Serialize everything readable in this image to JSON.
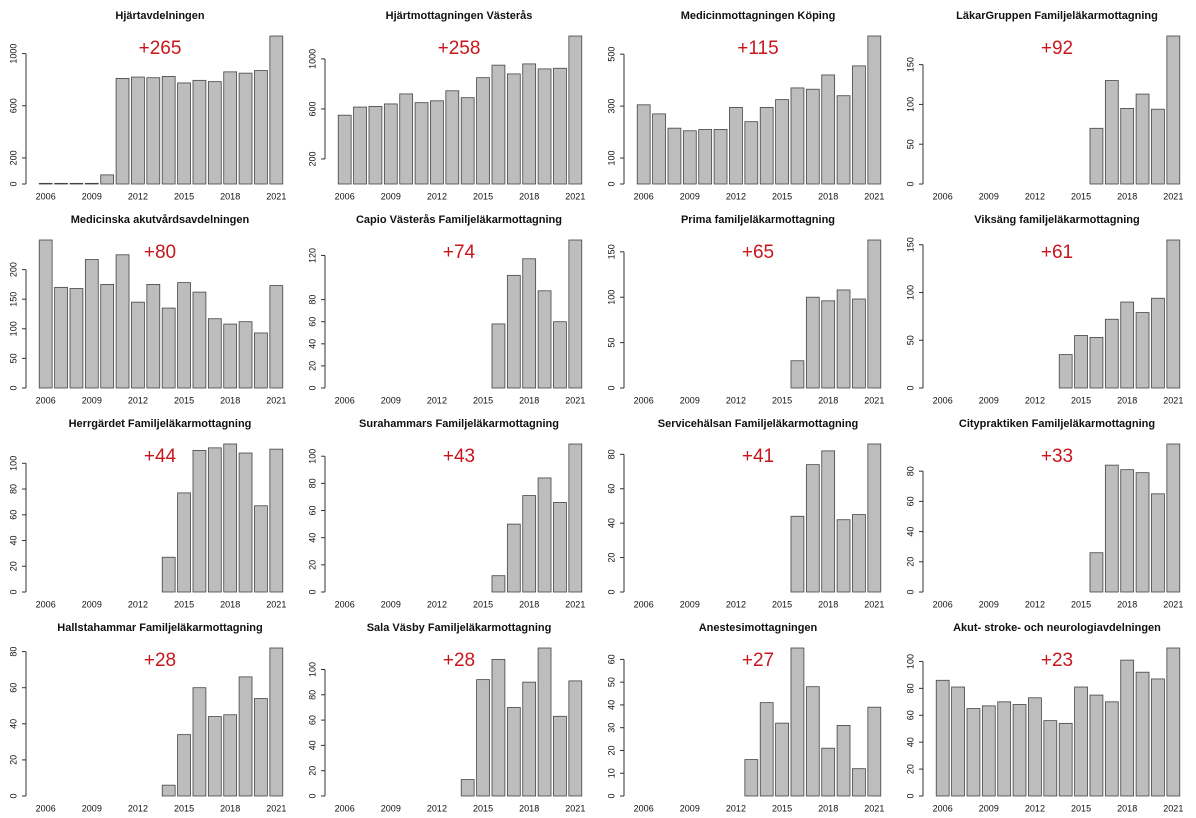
{
  "chart_data": [
    {
      "type": "bar",
      "title": "Hjärtavdelningen",
      "annotation": "+265",
      "color": "#bdbdbd",
      "annotation_color": "#c8161d",
      "categories": [
        "2006",
        null,
        null,
        "2009",
        null,
        null,
        "2012",
        null,
        null,
        "2015",
        null,
        null,
        "2018",
        null,
        null,
        "2021"
      ],
      "values": [
        5,
        5,
        5,
        5,
        70,
        810,
        820,
        815,
        825,
        775,
        795,
        785,
        860,
        850,
        870,
        1135
      ],
      "ylim": [
        0,
        1135
      ],
      "yticks": [
        0,
        200,
        600,
        1000
      ]
    },
    {
      "type": "bar",
      "title": "Hjärtmottagningen Västerås",
      "annotation": "+258",
      "color": "#bdbdbd",
      "annotation_color": "#c8161d",
      "categories": [
        "2006",
        null,
        null,
        "2009",
        null,
        null,
        "2012",
        null,
        null,
        "2015",
        null,
        null,
        "2018",
        null,
        null,
        "2021"
      ],
      "values": [
        550,
        615,
        620,
        640,
        720,
        650,
        665,
        745,
        690,
        850,
        950,
        880,
        960,
        920,
        925,
        1183
      ],
      "ylim": [
        0,
        1183
      ],
      "yticks": [
        200,
        600,
        1000
      ]
    },
    {
      "type": "bar",
      "title": "Medicinmottagningen Köping",
      "annotation": "+115",
      "color": "#bdbdbd",
      "annotation_color": "#c8161d",
      "categories": [
        "2006",
        null,
        null,
        "2009",
        null,
        null,
        "2012",
        null,
        null,
        "2015",
        null,
        null,
        "2018",
        null,
        null,
        "2021"
      ],
      "values": [
        305,
        270,
        215,
        205,
        210,
        210,
        295,
        240,
        295,
        325,
        370,
        365,
        420,
        340,
        455,
        570
      ],
      "ylim": [
        0,
        570
      ],
      "yticks": [
        0,
        100,
        300,
        500
      ]
    },
    {
      "type": "bar",
      "title": "LäkarGruppen Familjeläkarmottagning",
      "annotation": "+92",
      "color": "#bdbdbd",
      "annotation_color": "#c8161d",
      "categories": [
        "2006",
        null,
        null,
        "2009",
        null,
        null,
        "2012",
        null,
        null,
        "2015",
        null,
        null,
        "2018",
        null,
        null,
        "2021"
      ],
      "values": [
        0,
        0,
        0,
        0,
        0,
        0,
        0,
        0,
        0,
        0,
        70,
        130,
        95,
        113,
        94,
        186
      ],
      "ylim": [
        0,
        186
      ],
      "yticks": [
        0,
        50,
        100,
        150
      ]
    },
    {
      "type": "bar",
      "title": "Medicinska akutvårdsavdelningen",
      "annotation": "+80",
      "color": "#bdbdbd",
      "annotation_color": "#c8161d",
      "categories": [
        "2006",
        null,
        null,
        "2009",
        null,
        null,
        "2012",
        null,
        null,
        "2015",
        null,
        null,
        "2018",
        null,
        null,
        "2021"
      ],
      "values": [
        250,
        170,
        168,
        217,
        175,
        225,
        145,
        175,
        135,
        178,
        162,
        117,
        108,
        112,
        93,
        173
      ],
      "ylim": [
        0,
        250
      ],
      "yticks": [
        0,
        50,
        100,
        150,
        200
      ]
    },
    {
      "type": "bar",
      "title": "Capio Västerås Familjeläkarmottagning",
      "annotation": "+74",
      "color": "#bdbdbd",
      "annotation_color": "#c8161d",
      "categories": [
        "2006",
        null,
        null,
        "2009",
        null,
        null,
        "2012",
        null,
        null,
        "2015",
        null,
        null,
        "2018",
        null,
        null,
        "2021"
      ],
      "values": [
        0,
        0,
        0,
        0,
        0,
        0,
        0,
        0,
        0,
        0,
        58,
        102,
        117,
        88,
        60,
        134
      ],
      "ylim": [
        0,
        134
      ],
      "yticks": [
        0,
        20,
        40,
        60,
        80,
        120
      ]
    },
    {
      "type": "bar",
      "title": "Prima familjeläkarmottagning",
      "annotation": "+65",
      "color": "#bdbdbd",
      "annotation_color": "#c8161d",
      "categories": [
        "2006",
        null,
        null,
        "2009",
        null,
        null,
        "2012",
        null,
        null,
        "2015",
        null,
        null,
        "2018",
        null,
        null,
        "2021"
      ],
      "values": [
        0,
        0,
        0,
        0,
        0,
        0,
        0,
        0,
        0,
        0,
        30,
        100,
        96,
        108,
        98,
        163
      ],
      "ylim": [
        0,
        163
      ],
      "yticks": [
        0,
        50,
        100,
        150
      ]
    },
    {
      "type": "bar",
      "title": "Viksäng familjeläkarmottagning",
      "annotation": "+61",
      "color": "#bdbdbd",
      "annotation_color": "#c8161d",
      "categories": [
        "2006",
        null,
        null,
        "2009",
        null,
        null,
        "2012",
        null,
        null,
        "2015",
        null,
        null,
        "2018",
        null,
        null,
        "2021"
      ],
      "values": [
        0,
        0,
        0,
        0,
        0,
        0,
        0,
        0,
        35,
        55,
        53,
        72,
        90,
        79,
        94,
        155
      ],
      "ylim": [
        0,
        155
      ],
      "yticks": [
        0,
        50,
        100,
        150
      ]
    },
    {
      "type": "bar",
      "title": "Herrgärdet Familjeläkarmottagning",
      "annotation": "+44",
      "color": "#bdbdbd",
      "annotation_color": "#c8161d",
      "categories": [
        "2006",
        null,
        null,
        "2009",
        null,
        null,
        "2012",
        null,
        null,
        "2015",
        null,
        null,
        "2018",
        null,
        null,
        "2021"
      ],
      "values": [
        0,
        0,
        0,
        0,
        0,
        0,
        0,
        0,
        27,
        77,
        110,
        112,
        115,
        108,
        67,
        111
      ],
      "ylim": [
        0,
        115
      ],
      "yticks": [
        0,
        20,
        40,
        60,
        80,
        100
      ]
    },
    {
      "type": "bar",
      "title": "Surahammars Familjeläkarmottagning",
      "annotation": "+43",
      "color": "#bdbdbd",
      "annotation_color": "#c8161d",
      "categories": [
        "2006",
        null,
        null,
        "2009",
        null,
        null,
        "2012",
        null,
        null,
        "2015",
        null,
        null,
        "2018",
        null,
        null,
        "2021"
      ],
      "values": [
        0,
        0,
        0,
        0,
        0,
        0,
        0,
        0,
        0,
        0,
        12,
        50,
        71,
        84,
        66,
        109
      ],
      "ylim": [
        0,
        109
      ],
      "yticks": [
        0,
        20,
        40,
        60,
        80,
        100
      ]
    },
    {
      "type": "bar",
      "title": "Servicehälsan Familjeläkarmottagning",
      "annotation": "+41",
      "color": "#bdbdbd",
      "annotation_color": "#c8161d",
      "categories": [
        "2006",
        null,
        null,
        "2009",
        null,
        null,
        "2012",
        null,
        null,
        "2015",
        null,
        null,
        "2018",
        null,
        null,
        "2021"
      ],
      "values": [
        0,
        0,
        0,
        0,
        0,
        0,
        0,
        0,
        0,
        0,
        44,
        74,
        82,
        42,
        45,
        86
      ],
      "ylim": [
        0,
        86
      ],
      "yticks": [
        0,
        20,
        40,
        60,
        80
      ]
    },
    {
      "type": "bar",
      "title": "Citypraktiken Familjeläkarmottagning",
      "annotation": "+33",
      "color": "#bdbdbd",
      "annotation_color": "#c8161d",
      "categories": [
        "2006",
        null,
        null,
        "2009",
        null,
        null,
        "2012",
        null,
        null,
        "2015",
        null,
        null,
        "2018",
        null,
        null,
        "2021"
      ],
      "values": [
        0,
        0,
        0,
        0,
        0,
        0,
        0,
        0,
        0,
        0,
        26,
        84,
        81,
        79,
        65,
        98
      ],
      "ylim": [
        0,
        98
      ],
      "yticks": [
        0,
        20,
        40,
        60,
        80
      ]
    },
    {
      "type": "bar",
      "title": "Hallstahammar Familjeläkarmottagning",
      "annotation": "+28",
      "color": "#bdbdbd",
      "annotation_color": "#c8161d",
      "categories": [
        "2006",
        null,
        null,
        "2009",
        null,
        null,
        "2012",
        null,
        null,
        "2015",
        null,
        null,
        "2018",
        null,
        null,
        "2021"
      ],
      "values": [
        0,
        0,
        0,
        0,
        0,
        0,
        0,
        0,
        6,
        34,
        60,
        44,
        45,
        66,
        54,
        82
      ],
      "ylim": [
        0,
        82
      ],
      "yticks": [
        0,
        20,
        40,
        60,
        80
      ]
    },
    {
      "type": "bar",
      "title": "Sala Väsby Familjeläkarmottagning",
      "annotation": "+28",
      "color": "#bdbdbd",
      "annotation_color": "#c8161d",
      "categories": [
        "2006",
        null,
        null,
        "2009",
        null,
        null,
        "2012",
        null,
        null,
        "2015",
        null,
        null,
        "2018",
        null,
        null,
        "2021"
      ],
      "values": [
        0,
        0,
        0,
        0,
        0,
        0,
        0,
        0,
        13,
        92,
        108,
        70,
        90,
        117,
        63,
        91
      ],
      "ylim": [
        0,
        117
      ],
      "yticks": [
        0,
        20,
        40,
        60,
        80,
        100
      ]
    },
    {
      "type": "bar",
      "title": "Anestesimottagningen",
      "annotation": "+27",
      "color": "#bdbdbd",
      "annotation_color": "#c8161d",
      "categories": [
        "2006",
        null,
        null,
        "2009",
        null,
        null,
        "2012",
        null,
        null,
        "2015",
        null,
        null,
        "2018",
        null,
        null,
        "2021"
      ],
      "values": [
        0,
        0,
        0,
        0,
        0,
        0,
        0,
        16,
        41,
        32,
        65,
        48,
        21,
        31,
        12,
        39
      ],
      "ylim": [
        0,
        65
      ],
      "yticks": [
        0,
        10,
        20,
        30,
        40,
        50,
        60
      ]
    },
    {
      "type": "bar",
      "title": "Akut- stroke- och neurologiavdelningen",
      "annotation": "+23",
      "color": "#bdbdbd",
      "annotation_color": "#c8161d",
      "categories": [
        "2006",
        null,
        null,
        "2009",
        null,
        null,
        "2012",
        null,
        null,
        "2015",
        null,
        null,
        "2018",
        null,
        null,
        "2021"
      ],
      "values": [
        86,
        81,
        65,
        67,
        70,
        68,
        73,
        56,
        54,
        81,
        75,
        70,
        101,
        92,
        87,
        110
      ],
      "ylim": [
        0,
        110
      ],
      "yticks": [
        0,
        20,
        40,
        60,
        80,
        100
      ]
    }
  ]
}
